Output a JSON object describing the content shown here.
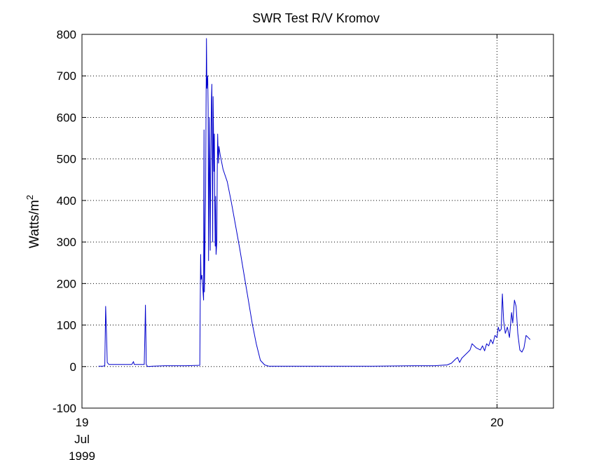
{
  "chart_data": {
    "type": "line",
    "title": "SWR Test R/V Kromov",
    "ylabel": {
      "base": "Watts/m",
      "sup": "2"
    },
    "xlabel": "",
    "ylim": [
      -100,
      800
    ],
    "xlim": [
      19.0,
      20.136
    ],
    "yticks": [
      -100,
      0,
      100,
      200,
      300,
      400,
      500,
      600,
      700,
      800
    ],
    "xticks": [
      {
        "value": 19,
        "lines": [
          "19",
          "Jul",
          "1999"
        ]
      },
      {
        "value": 20,
        "lines": [
          "20"
        ]
      }
    ],
    "grid": true,
    "series": [
      {
        "color": "#0000cc",
        "points": [
          [
            19.04,
            1
          ],
          [
            19.05,
            1
          ],
          [
            19.055,
            2
          ],
          [
            19.057,
            145
          ],
          [
            19.059,
            80
          ],
          [
            19.061,
            10
          ],
          [
            19.065,
            5
          ],
          [
            19.075,
            5
          ],
          [
            19.1,
            5
          ],
          [
            19.12,
            5
          ],
          [
            19.124,
            12
          ],
          [
            19.126,
            5
          ],
          [
            19.14,
            5
          ],
          [
            19.15,
            5
          ],
          [
            19.152,
            90
          ],
          [
            19.153,
            148
          ],
          [
            19.155,
            5
          ],
          [
            19.158,
            0
          ],
          [
            19.17,
            1
          ],
          [
            19.2,
            2
          ],
          [
            19.25,
            2
          ],
          [
            19.284,
            3
          ],
          [
            19.285,
            150
          ],
          [
            19.286,
            270
          ],
          [
            19.287,
            210
          ],
          [
            19.289,
            220
          ],
          [
            19.291,
            190
          ],
          [
            19.293,
            160
          ],
          [
            19.294,
            570
          ],
          [
            19.295,
            180
          ],
          [
            19.297,
            350
          ],
          [
            19.298,
            410
          ],
          [
            19.299,
            620
          ],
          [
            19.3,
            790
          ],
          [
            19.301,
            670
          ],
          [
            19.303,
            700
          ],
          [
            19.304,
            620
          ],
          [
            19.305,
            255
          ],
          [
            19.306,
            430
          ],
          [
            19.307,
            600
          ],
          [
            19.309,
            280
          ],
          [
            19.31,
            470
          ],
          [
            19.312,
            640
          ],
          [
            19.313,
            680
          ],
          [
            19.315,
            300
          ],
          [
            19.316,
            650
          ],
          [
            19.318,
            470
          ],
          [
            19.319,
            560
          ],
          [
            19.32,
            380
          ],
          [
            19.321,
            290
          ],
          [
            19.322,
            410
          ],
          [
            19.323,
            270
          ],
          [
            19.325,
            300
          ],
          [
            19.326,
            470
          ],
          [
            19.327,
            560
          ],
          [
            19.328,
            520
          ],
          [
            19.329,
            490
          ],
          [
            19.33,
            530
          ],
          [
            19.333,
            510
          ],
          [
            19.34,
            475
          ],
          [
            19.35,
            445
          ],
          [
            19.36,
            395
          ],
          [
            19.37,
            340
          ],
          [
            19.38,
            285
          ],
          [
            19.39,
            225
          ],
          [
            19.4,
            165
          ],
          [
            19.41,
            105
          ],
          [
            19.42,
            55
          ],
          [
            19.43,
            15
          ],
          [
            19.44,
            4
          ],
          [
            19.45,
            1
          ],
          [
            19.5,
            1
          ],
          [
            19.6,
            1
          ],
          [
            19.7,
            1
          ],
          [
            19.8,
            2
          ],
          [
            19.85,
            2
          ],
          [
            19.88,
            4
          ],
          [
            19.89,
            8
          ],
          [
            19.9,
            18
          ],
          [
            19.905,
            22
          ],
          [
            19.91,
            10
          ],
          [
            19.915,
            20
          ],
          [
            19.92,
            25
          ],
          [
            19.93,
            35
          ],
          [
            19.935,
            40
          ],
          [
            19.94,
            55
          ],
          [
            19.95,
            45
          ],
          [
            19.96,
            40
          ],
          [
            19.965,
            50
          ],
          [
            19.97,
            38
          ],
          [
            19.975,
            55
          ],
          [
            19.98,
            50
          ],
          [
            19.985,
            65
          ],
          [
            19.99,
            55
          ],
          [
            19.995,
            75
          ],
          [
            20.0,
            70
          ],
          [
            20.003,
            95
          ],
          [
            20.006,
            85
          ],
          [
            20.01,
            90
          ],
          [
            20.013,
            175
          ],
          [
            20.016,
            110
          ],
          [
            20.02,
            80
          ],
          [
            20.025,
            95
          ],
          [
            20.03,
            70
          ],
          [
            20.035,
            130
          ],
          [
            20.038,
            105
          ],
          [
            20.042,
            160
          ],
          [
            20.046,
            145
          ],
          [
            20.05,
            80
          ],
          [
            20.055,
            40
          ],
          [
            20.06,
            35
          ],
          [
            20.065,
            45
          ],
          [
            20.07,
            75
          ],
          [
            20.075,
            70
          ],
          [
            20.08,
            65
          ]
        ]
      }
    ]
  }
}
